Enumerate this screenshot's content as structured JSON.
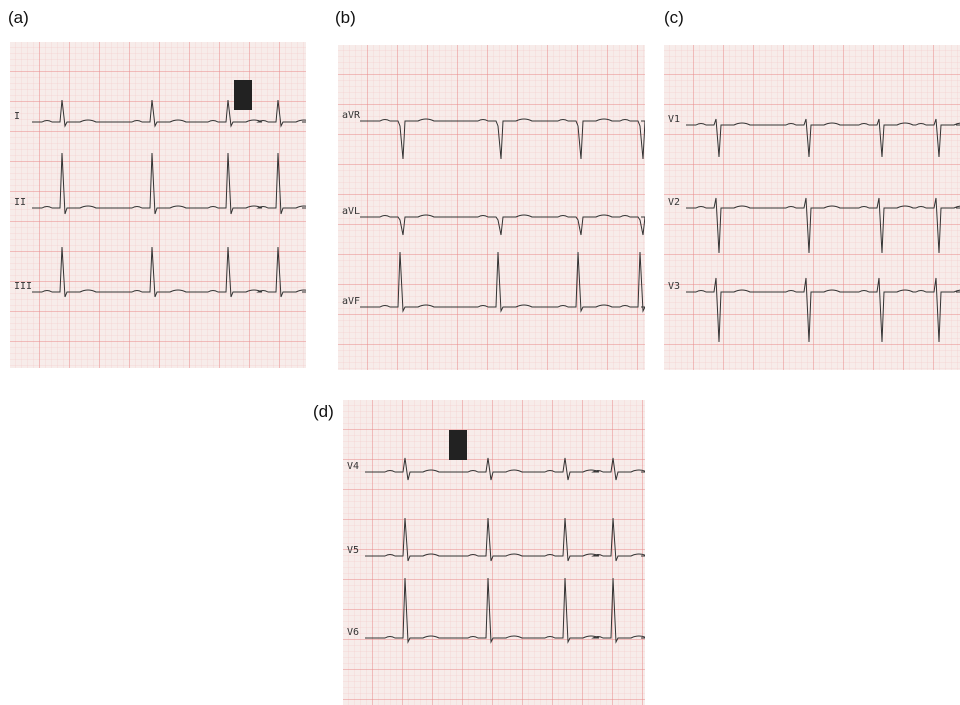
{
  "panels": [
    {
      "label": "(a)",
      "leads": [
        "I",
        "II",
        "III"
      ]
    },
    {
      "label": "(b)",
      "leads": [
        "aVR",
        "aVL",
        "aVF"
      ]
    },
    {
      "label": "(c)",
      "leads": [
        "V1",
        "V2",
        "V3"
      ]
    },
    {
      "label": "(d)",
      "leads": [
        "V4",
        "V5",
        "V6"
      ]
    }
  ]
}
